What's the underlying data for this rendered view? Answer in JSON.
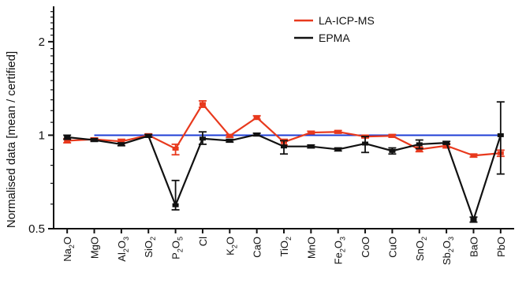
{
  "chart_data": {
    "type": "line",
    "title": "",
    "xlabel": "",
    "ylabel": "Normalised data [mean / certified]",
    "yscale": "log",
    "ylim": [
      0.5,
      2.6
    ],
    "yticks": [
      {
        "value": 0.5,
        "label": "0.5"
      },
      {
        "value": 1,
        "label": "1"
      },
      {
        "value": 2,
        "label": "2"
      }
    ],
    "categories": [
      {
        "base": "Na",
        "sub": "2",
        "mid": "O",
        "sub2": "",
        "end": ""
      },
      {
        "base": "MgO",
        "sub": "",
        "mid": "",
        "sub2": "",
        "end": ""
      },
      {
        "base": "Al",
        "sub": "2",
        "mid": "O",
        "sub2": "3",
        "end": ""
      },
      {
        "base": "SiO",
        "sub": "2",
        "mid": "",
        "sub2": "",
        "end": ""
      },
      {
        "base": "P",
        "sub": "2",
        "mid": "O",
        "sub2": "5",
        "end": ""
      },
      {
        "base": "Cl",
        "sub": "",
        "mid": "",
        "sub2": "",
        "end": ""
      },
      {
        "base": "K",
        "sub": "2",
        "mid": "O",
        "sub2": "",
        "end": ""
      },
      {
        "base": "CaO",
        "sub": "",
        "mid": "",
        "sub2": "",
        "end": ""
      },
      {
        "base": "TiO",
        "sub": "2",
        "mid": "",
        "sub2": "",
        "end": ""
      },
      {
        "base": "MnO",
        "sub": "",
        "mid": "",
        "sub2": "",
        "end": ""
      },
      {
        "base": "Fe",
        "sub": "2",
        "mid": "O",
        "sub2": "3",
        "end": ""
      },
      {
        "base": "CoO",
        "sub": "",
        "mid": "",
        "sub2": "",
        "end": ""
      },
      {
        "base": "CuO",
        "sub": "",
        "mid": "",
        "sub2": "",
        "end": ""
      },
      {
        "base": "SnO",
        "sub": "2",
        "mid": "",
        "sub2": "",
        "end": ""
      },
      {
        "base": "Sb",
        "sub": "2",
        "mid": "O",
        "sub2": "3",
        "end": ""
      },
      {
        "base": "BaO",
        "sub": "",
        "mid": "",
        "sub2": "",
        "end": ""
      },
      {
        "base": "PbO",
        "sub": "",
        "mid": "",
        "sub2": "",
        "end": ""
      }
    ],
    "reference_line": {
      "value": 1,
      "from_index": 1,
      "to_index": 16,
      "color": "#1f3fd6"
    },
    "series": [
      {
        "name": "LA-ICP-MS",
        "color": "#e8391d",
        "values": [
          0.96,
          0.97,
          0.955,
          1.0,
          0.905,
          1.26,
          0.995,
          1.14,
          0.95,
          1.02,
          1.025,
          0.99,
          0.995,
          0.9,
          0.925,
          0.86,
          0.875
        ],
        "err_up": [
          0.015,
          0.01,
          0.015,
          0.01,
          0.03,
          0.03,
          0.01,
          0.015,
          0.02,
          0.01,
          0.01,
          0.01,
          0.01,
          0.015,
          0.015,
          0.01,
          0.02
        ],
        "err_down": [
          0.015,
          0.01,
          0.015,
          0.01,
          0.04,
          0.03,
          0.01,
          0.015,
          0.02,
          0.01,
          0.01,
          0.01,
          0.01,
          0.015,
          0.015,
          0.01,
          0.02
        ]
      },
      {
        "name": "EPMA",
        "color": "#111111",
        "values": [
          0.985,
          0.965,
          0.935,
          0.995,
          0.595,
          0.975,
          0.96,
          1.005,
          0.92,
          0.92,
          0.9,
          0.94,
          0.89,
          0.935,
          0.945,
          0.535,
          1.0
        ],
        "err_up": [
          0.015,
          0.01,
          0.01,
          0.01,
          0.12,
          0.05,
          0.01,
          0.01,
          0.04,
          0.01,
          0.01,
          0.05,
          0.02,
          0.03,
          0.01,
          0.01,
          0.28
        ],
        "err_down": [
          0.015,
          0.01,
          0.01,
          0.01,
          0.02,
          0.04,
          0.01,
          0.01,
          0.05,
          0.01,
          0.01,
          0.06,
          0.02,
          0.03,
          0.01,
          0.01,
          0.25
        ]
      }
    ],
    "legend": {
      "position": "top-right",
      "entries": [
        "LA-ICP-MS",
        "EPMA"
      ]
    }
  }
}
